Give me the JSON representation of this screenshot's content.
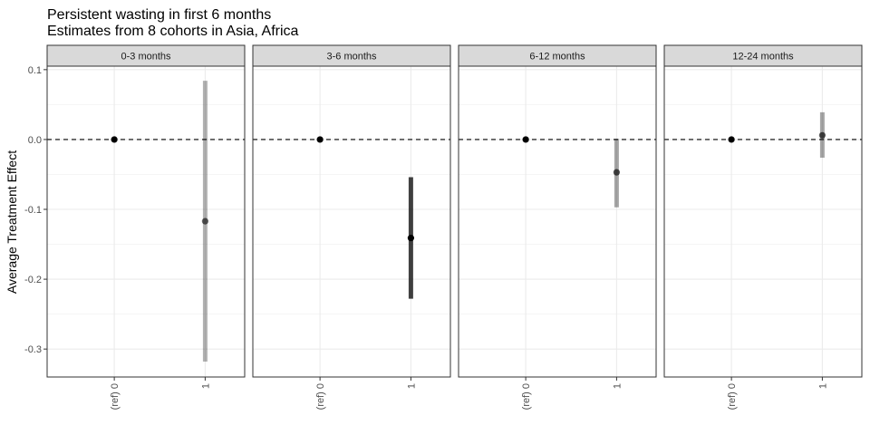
{
  "chart_data": {
    "type": "scatter",
    "title": "Persistent wasting in first 6 months",
    "subtitle": "Estimates from 8 cohorts in Asia, Africa",
    "xlabel": "",
    "ylabel": "Average Treatment Effect",
    "ylim": [
      -0.34,
      0.105
    ],
    "yticks": [
      0.1,
      0.0,
      -0.1,
      -0.2,
      -0.3
    ],
    "ytick_labels": [
      "0.1",
      "0.0",
      "-0.1",
      "-0.2",
      "-0.3"
    ],
    "categories": [
      "(ref) 0",
      "1"
    ],
    "reference_line": 0,
    "grid": true,
    "colors": {
      "strip_fill": "#d9d9d9",
      "panel_border": "#333333",
      "grid": "#ebebeb",
      "point": "#000000"
    },
    "panels": [
      {
        "label": "0-3 months",
        "points": [
          {
            "x": "(ref) 0",
            "y": 0.0,
            "lower": null,
            "upper": null,
            "opacity": 1.0
          },
          {
            "x": "1",
            "y": -0.117,
            "lower": -0.318,
            "upper": 0.084,
            "opacity": 0.3
          }
        ]
      },
      {
        "label": "3-6 months",
        "points": [
          {
            "x": "(ref) 0",
            "y": 0.0,
            "lower": null,
            "upper": null,
            "opacity": 1.0
          },
          {
            "x": "1",
            "y": -0.141,
            "lower": -0.228,
            "upper": -0.054,
            "opacity": 0.75
          }
        ]
      },
      {
        "label": "6-12 months",
        "points": [
          {
            "x": "(ref) 0",
            "y": 0.0,
            "lower": null,
            "upper": null,
            "opacity": 1.0
          },
          {
            "x": "1",
            "y": -0.047,
            "lower": -0.097,
            "upper": 0.001,
            "opacity": 0.35
          }
        ]
      },
      {
        "label": "12-24 months",
        "points": [
          {
            "x": "(ref) 0",
            "y": 0.0,
            "lower": null,
            "upper": null,
            "opacity": 1.0
          },
          {
            "x": "1",
            "y": 0.006,
            "lower": -0.026,
            "upper": 0.039,
            "opacity": 0.35
          }
        ]
      }
    ]
  }
}
